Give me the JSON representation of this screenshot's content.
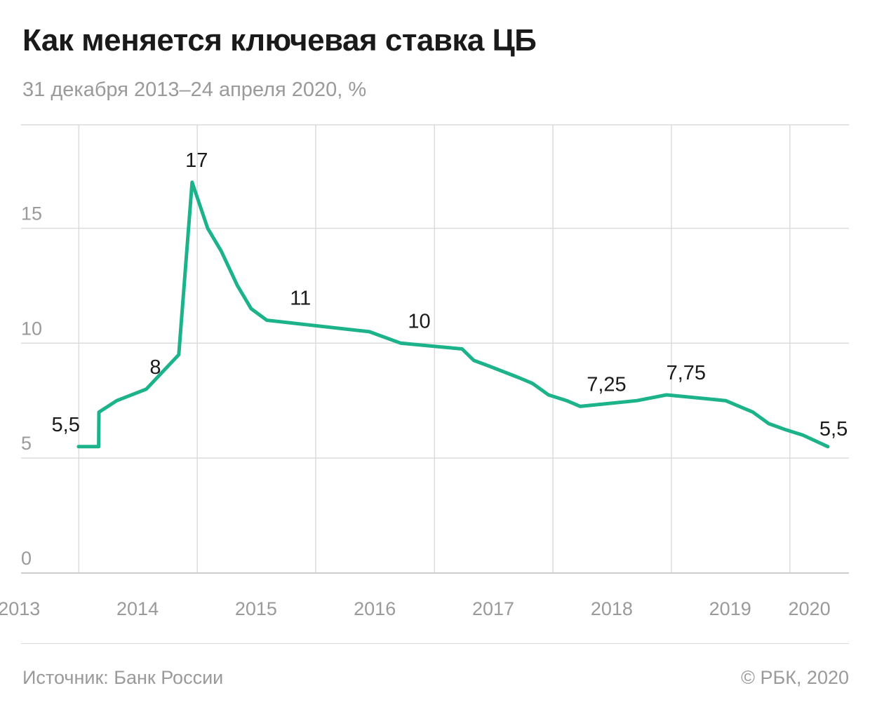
{
  "header": {
    "title": "Как меняется ключевая ставка ЦБ",
    "subtitle": "31 декабря 2013–24 апреля 2020, %"
  },
  "footer": {
    "source": "Источник: Банк России",
    "copyright": "© РБК, 2020"
  },
  "colors": {
    "line": "#1db38a",
    "grid": "#dcdcdc",
    "axis": "#cfcfcf",
    "tick_text": "#9a9a9a",
    "label_text": "#1a1a1a"
  },
  "chart_data": {
    "type": "line",
    "xlabel": "",
    "ylabel": "",
    "ylim": [
      0,
      19.5
    ],
    "xlim": [
      "2013-07-07",
      "2020-07-01"
    ],
    "y_ticks": [
      {
        "value": 0,
        "label": "0"
      },
      {
        "value": 5,
        "label": "5"
      },
      {
        "value": 10,
        "label": "10"
      },
      {
        "value": 15,
        "label": "15"
      }
    ],
    "x_gridlines": [
      "2014-01-01",
      "2015-01-01",
      "2016-01-01",
      "2017-01-01",
      "2018-01-01",
      "2019-01-01",
      "2020-01-01"
    ],
    "x_ticks": [
      {
        "date": "2013-07-01",
        "label": "2013"
      },
      {
        "date": "2014-07-01",
        "label": "2014"
      },
      {
        "date": "2015-07-01",
        "label": "2015"
      },
      {
        "date": "2016-07-01",
        "label": "2016"
      },
      {
        "date": "2017-07-01",
        "label": "2017"
      },
      {
        "date": "2018-07-01",
        "label": "2018"
      },
      {
        "date": "2019-07-01",
        "label": "2019"
      },
      {
        "date": "2020-03-01",
        "label": "2020"
      }
    ],
    "grid": true,
    "legend": "none",
    "series": [
      {
        "points": [
          [
            "2013-12-31",
            5.5
          ],
          [
            "2014-03-03",
            5.5
          ],
          [
            "2014-03-04",
            7.0
          ],
          [
            "2014-04-28",
            7.5
          ],
          [
            "2014-07-28",
            8.0
          ],
          [
            "2014-11-05",
            9.5
          ],
          [
            "2014-12-16",
            17.0
          ],
          [
            "2015-02-02",
            15.0
          ],
          [
            "2015-03-16",
            14.0
          ],
          [
            "2015-05-05",
            12.5
          ],
          [
            "2015-06-16",
            11.5
          ],
          [
            "2015-08-03",
            11.0
          ],
          [
            "2016-06-14",
            10.5
          ],
          [
            "2016-09-19",
            10.0
          ],
          [
            "2017-03-27",
            9.75
          ],
          [
            "2017-05-02",
            9.25
          ],
          [
            "2017-06-19",
            9.0
          ],
          [
            "2017-09-18",
            8.5
          ],
          [
            "2017-10-30",
            8.25
          ],
          [
            "2017-12-18",
            7.75
          ],
          [
            "2018-02-12",
            7.5
          ],
          [
            "2018-03-26",
            7.25
          ],
          [
            "2018-09-17",
            7.5
          ],
          [
            "2018-12-17",
            7.75
          ],
          [
            "2019-06-17",
            7.5
          ],
          [
            "2019-07-29",
            7.25
          ],
          [
            "2019-09-09",
            7.0
          ],
          [
            "2019-10-28",
            6.5
          ],
          [
            "2019-12-16",
            6.25
          ],
          [
            "2020-02-10",
            6.0
          ],
          [
            "2020-04-27",
            5.5
          ]
        ]
      }
    ],
    "annotations": [
      {
        "date": "2013-12-31",
        "value": 5.5,
        "text": "5,5",
        "anchor": "end"
      },
      {
        "date": "2014-08-25",
        "value": 8.0,
        "text": "8",
        "anchor": "middle"
      },
      {
        "date": "2014-12-30",
        "value": 17.0,
        "text": "17",
        "anchor": "middle"
      },
      {
        "date": "2015-11-15",
        "value": 11.0,
        "text": "11",
        "anchor": "middle"
      },
      {
        "date": "2016-11-15",
        "value": 10.0,
        "text": "10",
        "anchor": "middle"
      },
      {
        "date": "2018-06-15",
        "value": 7.25,
        "text": "7,25",
        "anchor": "middle"
      },
      {
        "date": "2019-02-15",
        "value": 7.75,
        "text": "7,75",
        "anchor": "middle"
      },
      {
        "date": "2020-04-27",
        "value": 5.5,
        "text": "5,5",
        "anchor": "start"
      }
    ]
  }
}
